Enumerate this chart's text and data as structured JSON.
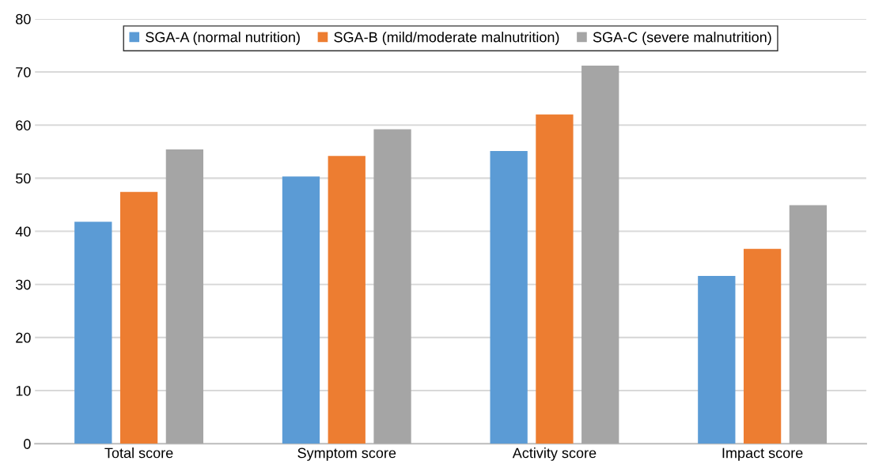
{
  "chart_data": {
    "type": "bar",
    "categories": [
      "Total score",
      "Symptom score",
      "Activity score",
      "Impact score"
    ],
    "series": [
      {
        "name": "SGA-A (normal nutrition)",
        "color": "#5b9bd5",
        "values": [
          41.8,
          50.3,
          55.1,
          31.6
        ]
      },
      {
        "name": "SGA-B (mild/moderate malnutrition)",
        "color": "#ed7d31",
        "values": [
          47.4,
          54.2,
          62.0,
          36.7
        ]
      },
      {
        "name": "SGA-C (severe malnutrition)",
        "color": "#a5a5a5",
        "values": [
          55.4,
          59.2,
          71.2,
          44.9
        ]
      }
    ],
    "ylim": [
      0,
      80
    ],
    "yticks": [
      0,
      10,
      20,
      30,
      40,
      50,
      60,
      70,
      80
    ],
    "grid": "y",
    "legend": "top"
  }
}
